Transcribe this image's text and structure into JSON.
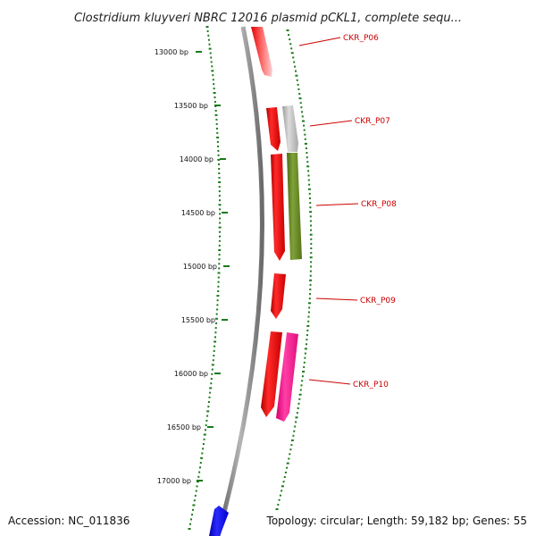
{
  "title": "Clostridium kluyveri NBRC 12016 plasmid pCKL1, complete sequ...",
  "footer": {
    "accession": "Accession: NC_011836",
    "summary": "Topology: circular; Length: 59,182 bp; Genes: 55"
  },
  "scale_labels": [
    "13000 bp",
    "13500 bp",
    "14000 bp",
    "14500 bp",
    "15000 bp",
    "15500 bp",
    "16000 bp",
    "16500 bp",
    "17000 bp"
  ],
  "gene_labels": [
    "CKR_P06",
    "CKR_P07",
    "CKR_P08",
    "CKR_P09",
    "CKR_P10"
  ],
  "colors": {
    "backbone": "#8a8a8a",
    "forward_gene": "#ee0000",
    "reverse_gene": "#0000ee",
    "gray_feature": "#b8b8b8",
    "olive_feature": "#6b8e23",
    "magenta_feature": "#ff1493",
    "gc_ticks": "#1a7a1a",
    "label_text": "#cc0000"
  }
}
